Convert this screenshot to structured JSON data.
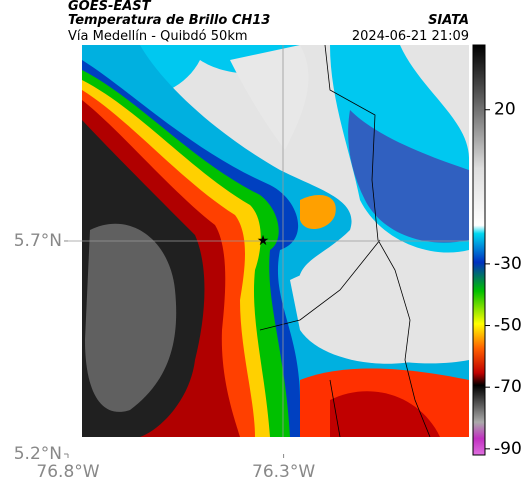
{
  "header": {
    "satellite": "GOES-EAST",
    "product": "Temperatura de Brillo CH13",
    "route": "Vía Medellín - Quibdó 50km",
    "source": "SIATA",
    "datetime": "2024-06-21 21:09"
  },
  "map": {
    "latlim": [
      5.2,
      6.16
    ],
    "lonlim": [
      -76.8,
      -75.87
    ],
    "lat_ticks": [
      {
        "value": 5.7,
        "label": "5.7°N"
      },
      {
        "value": 5.2,
        "label": "5.2°N"
      }
    ],
    "lon_ticks": [
      {
        "value": -76.8,
        "label": "76.8°W"
      },
      {
        "value": -76.3,
        "label": "76.3°W"
      }
    ]
  },
  "colorbar": {
    "lim": [
      41,
      -92
    ],
    "ticks": [
      20,
      -30,
      -50,
      -70,
      -90
    ]
  }
}
